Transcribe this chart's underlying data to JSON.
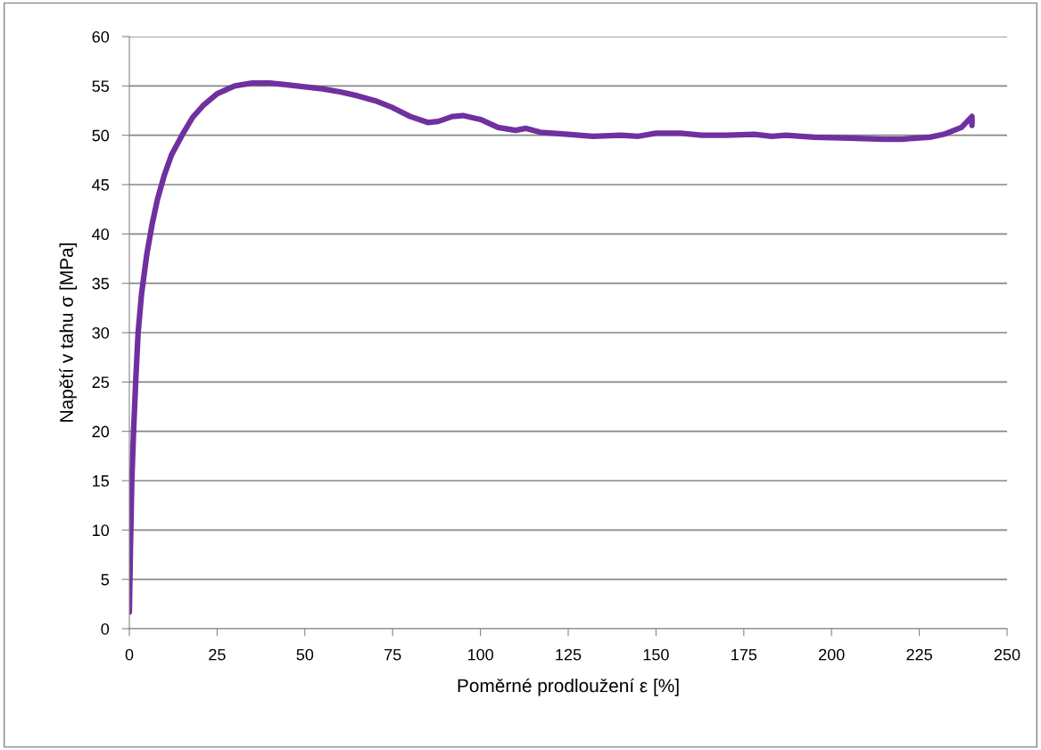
{
  "chart_data": {
    "type": "line",
    "xlabel": "Poměrné prodloužení ε [%]",
    "ylabel": "Napětí v tahu σ [MPa]",
    "xlim": [
      0,
      250
    ],
    "ylim": [
      0,
      60
    ],
    "xticks": [
      0,
      25,
      50,
      75,
      100,
      125,
      150,
      175,
      200,
      225,
      250
    ],
    "yticks": [
      0,
      5,
      10,
      15,
      20,
      25,
      30,
      35,
      40,
      45,
      50,
      55,
      60
    ],
    "grid": "y",
    "legend": false,
    "marker": "none",
    "line_style": "solid",
    "series": [
      {
        "color": "#7030a0",
        "x": [
          0,
          0.3,
          0.7,
          1.2,
          1.8,
          2.5,
          3.5,
          5,
          6.5,
          8,
          10,
          12,
          15,
          18,
          21,
          25,
          30,
          35,
          40,
          45,
          50,
          55,
          60,
          65,
          70,
          75,
          80,
          85,
          88,
          92,
          95,
          100,
          105,
          110,
          113,
          117,
          125,
          132,
          140,
          145,
          150,
          157,
          163,
          170,
          178,
          183,
          187,
          195,
          205,
          215,
          220,
          228,
          232,
          237,
          240,
          240
        ],
        "values": [
          1.7,
          8,
          15,
          20,
          25,
          30,
          34,
          38,
          41,
          43.5,
          46,
          48,
          50,
          51.8,
          53,
          54.2,
          55,
          55.3,
          55.3,
          55.1,
          54.9,
          54.7,
          54.4,
          54,
          53.5,
          52.8,
          51.9,
          51.3,
          51.4,
          51.9,
          52,
          51.6,
          50.8,
          50.5,
          50.7,
          50.3,
          50.1,
          49.9,
          50,
          49.9,
          50.2,
          50.2,
          50,
          50,
          50.1,
          49.9,
          50,
          49.8,
          49.7,
          49.6,
          49.6,
          49.8,
          50.1,
          50.8,
          51.9,
          51
        ]
      }
    ]
  }
}
